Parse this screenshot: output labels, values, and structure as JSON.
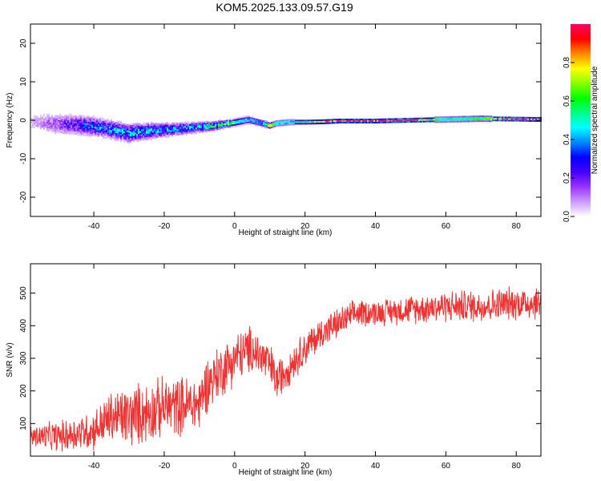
{
  "title": "KOM5.2025.133.09.57.G19",
  "colors": {
    "snr_line": "#ee3333",
    "frame": "#000000"
  },
  "chart_data": [
    {
      "type": "heatmap",
      "xlabel": "Height of straight line (km)",
      "ylabel": "Frequency (Hz)",
      "xlim": [
        -58,
        87
      ],
      "ylim": [
        -25,
        25
      ],
      "xticks": [
        -40,
        -20,
        0,
        20,
        40,
        60,
        80
      ],
      "yticks": [
        -20,
        -10,
        0,
        10,
        20
      ],
      "colorbar": {
        "label": "Normalized spectral amplitude",
        "range": [
          0,
          1
        ],
        "ticks": [
          "0.0",
          "0.2",
          "0.4",
          "0.6",
          "0.8"
        ],
        "colormap": [
          "#ffffff",
          "#cc99ff",
          "#9933ff",
          "#4400ff",
          "#0000ff",
          "#0088ff",
          "#00ffff",
          "#00ff88",
          "#00ff00",
          "#88ff00",
          "#ffff00",
          "#ff8800",
          "#ff0000",
          "#ff0066"
        ]
      },
      "ridge": {
        "x": [
          -58,
          -50,
          -42,
          -36,
          -30,
          -24,
          -18,
          -12,
          -6,
          0,
          4,
          8,
          10,
          12,
          16,
          20,
          25,
          30,
          40,
          50,
          60,
          70,
          80,
          87
        ],
        "freq": [
          -0.3,
          -0.8,
          -1.2,
          -2.0,
          -3.2,
          -2.6,
          -2.2,
          -1.8,
          -1.3,
          -0.4,
          0.3,
          -0.6,
          -1.2,
          -0.6,
          -0.3,
          -0.3,
          -0.2,
          0.0,
          0.0,
          0.2,
          0.4,
          0.6,
          0.5,
          0.4
        ],
        "amplitude": [
          0.05,
          0.15,
          0.3,
          0.35,
          0.4,
          0.38,
          0.35,
          0.4,
          0.5,
          0.55,
          0.45,
          0.4,
          0.9,
          0.55,
          0.5,
          0.6,
          0.75,
          0.95,
          0.9,
          0.95,
          0.55,
          0.7,
          0.95,
          0.85
        ],
        "spread_hz": [
          2.6,
          2.4,
          2.2,
          2.0,
          2.0,
          1.8,
          1.5,
          1.2,
          1.0,
          0.8,
          0.8,
          0.8,
          0.6,
          0.6,
          0.6,
          0.5,
          0.5,
          0.5,
          0.5,
          0.5,
          0.6,
          0.6,
          0.5,
          0.5
        ]
      }
    },
    {
      "type": "line",
      "xlabel": "Height of straight line (km)",
      "ylabel": "SNR (v/v)",
      "xlim": [
        -58,
        87
      ],
      "ylim": [
        0,
        590
      ],
      "xticks": [
        -40,
        -20,
        0,
        20,
        40,
        60,
        80
      ],
      "yticks": [
        100,
        200,
        300,
        400,
        500
      ],
      "trend": {
        "x": [
          -58,
          -50,
          -40,
          -35,
          -30,
          -20,
          -10,
          -8,
          0,
          5,
          10,
          12,
          15,
          20,
          25,
          30,
          35,
          40,
          50,
          60,
          70,
          80,
          87
        ],
        "snr": [
          60,
          60,
          80,
          120,
          120,
          150,
          160,
          220,
          300,
          330,
          280,
          230,
          270,
          330,
          380,
          410,
          440,
          440,
          450,
          460,
          460,
          470,
          470
        ]
      },
      "noise_amplitude": {
        "x": [
          -58,
          -40,
          -30,
          -10,
          0,
          20,
          40,
          60,
          87
        ],
        "amp": [
          40,
          70,
          110,
          100,
          90,
          60,
          45,
          55,
          60
        ]
      },
      "samples": 1400
    }
  ]
}
